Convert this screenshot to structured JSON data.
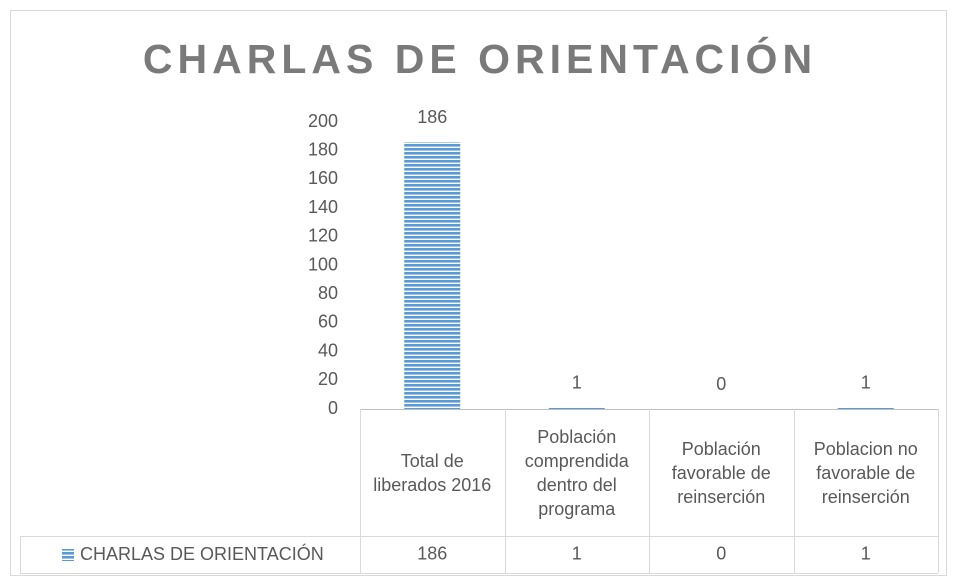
{
  "chart_data": {
    "type": "bar",
    "title": "CHARLAS DE ORIENTACIÓN",
    "categories": [
      "Total de liberados 2016",
      "Población comprendida dentro del programa",
      "Población favorable de reinserción",
      "Poblacion no favorable de reinserción"
    ],
    "series": [
      {
        "name": "CHARLAS DE ORIENTACIÓN",
        "color": "#5b9bd5",
        "values": [
          186,
          1,
          0,
          1
        ]
      }
    ],
    "ylim": [
      0,
      200
    ],
    "yticks": [
      0,
      20,
      40,
      60,
      80,
      100,
      120,
      140,
      160,
      180,
      200
    ],
    "grid": false
  }
}
